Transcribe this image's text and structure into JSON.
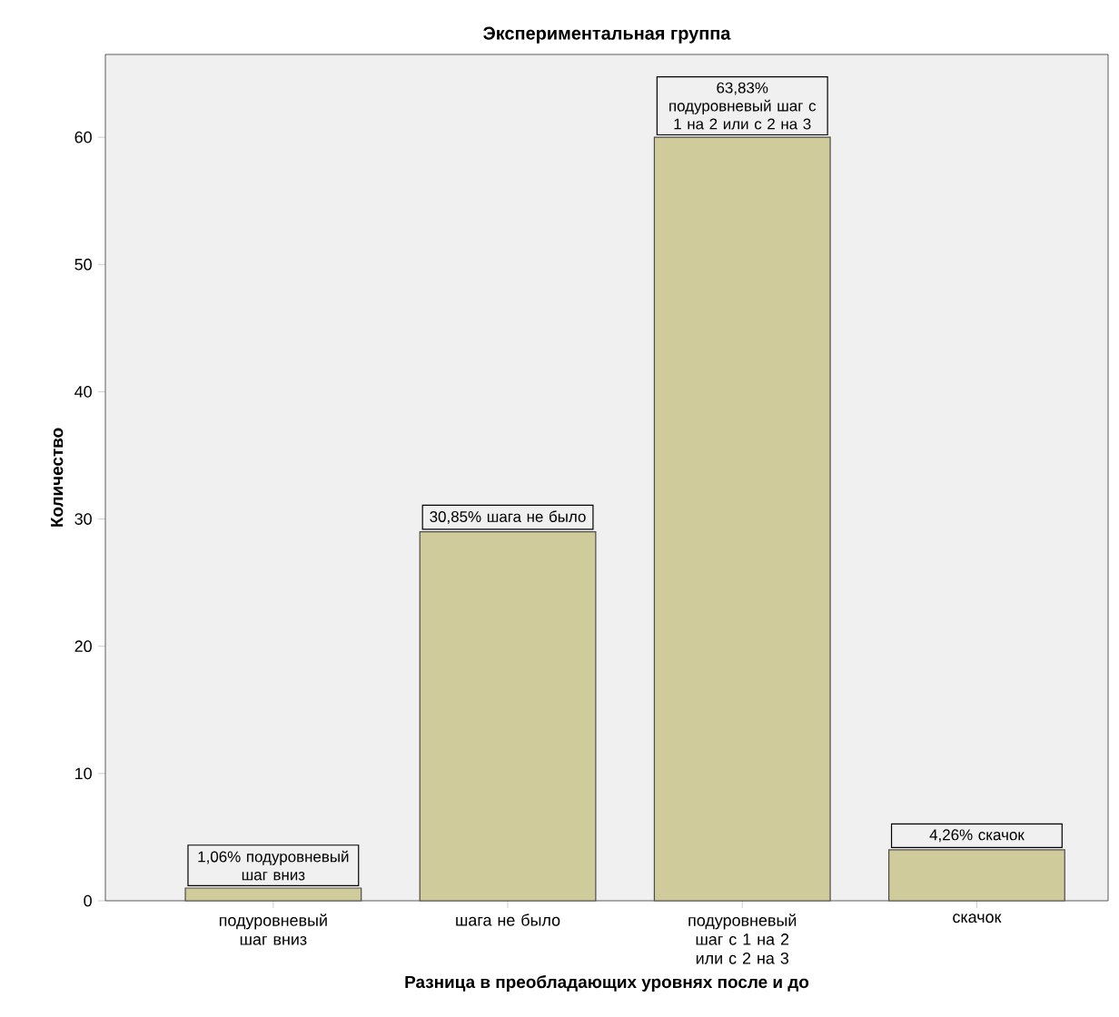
{
  "chart_data": {
    "type": "bar",
    "title": "Экспериментальная группа",
    "xlabel": "Разница в преобладающих уровнях после и до",
    "ylabel": "Количество",
    "categories": [
      "подуровневый шаг вниз",
      "шага не было",
      "подуровневый шаг с 1 на 2  или с 2 на 3",
      "скачок"
    ],
    "values": [
      1,
      29,
      60,
      4
    ],
    "color": "#d0cb9b",
    "ylim": [
      0,
      66.5
    ],
    "yticks": [
      0,
      10,
      20,
      30,
      40,
      50,
      60
    ],
    "annotations": [
      {
        "text": "1,06% подуровневый шаг вниз",
        "x": "подуровневый шаг вниз",
        "y": 1
      },
      {
        "text": "30,85% шага не было",
        "x": "шага не было",
        "y": 29
      },
      {
        "text": "63,83% подуровневый шаг с 1 на 2 или с 2 на 3",
        "x": "подуровневый шаг с 1 на 2  или с 2 на 3",
        "y": 60
      },
      {
        "text": "4,26% скачок",
        "x": "скачок",
        "y": 4
      }
    ]
  }
}
